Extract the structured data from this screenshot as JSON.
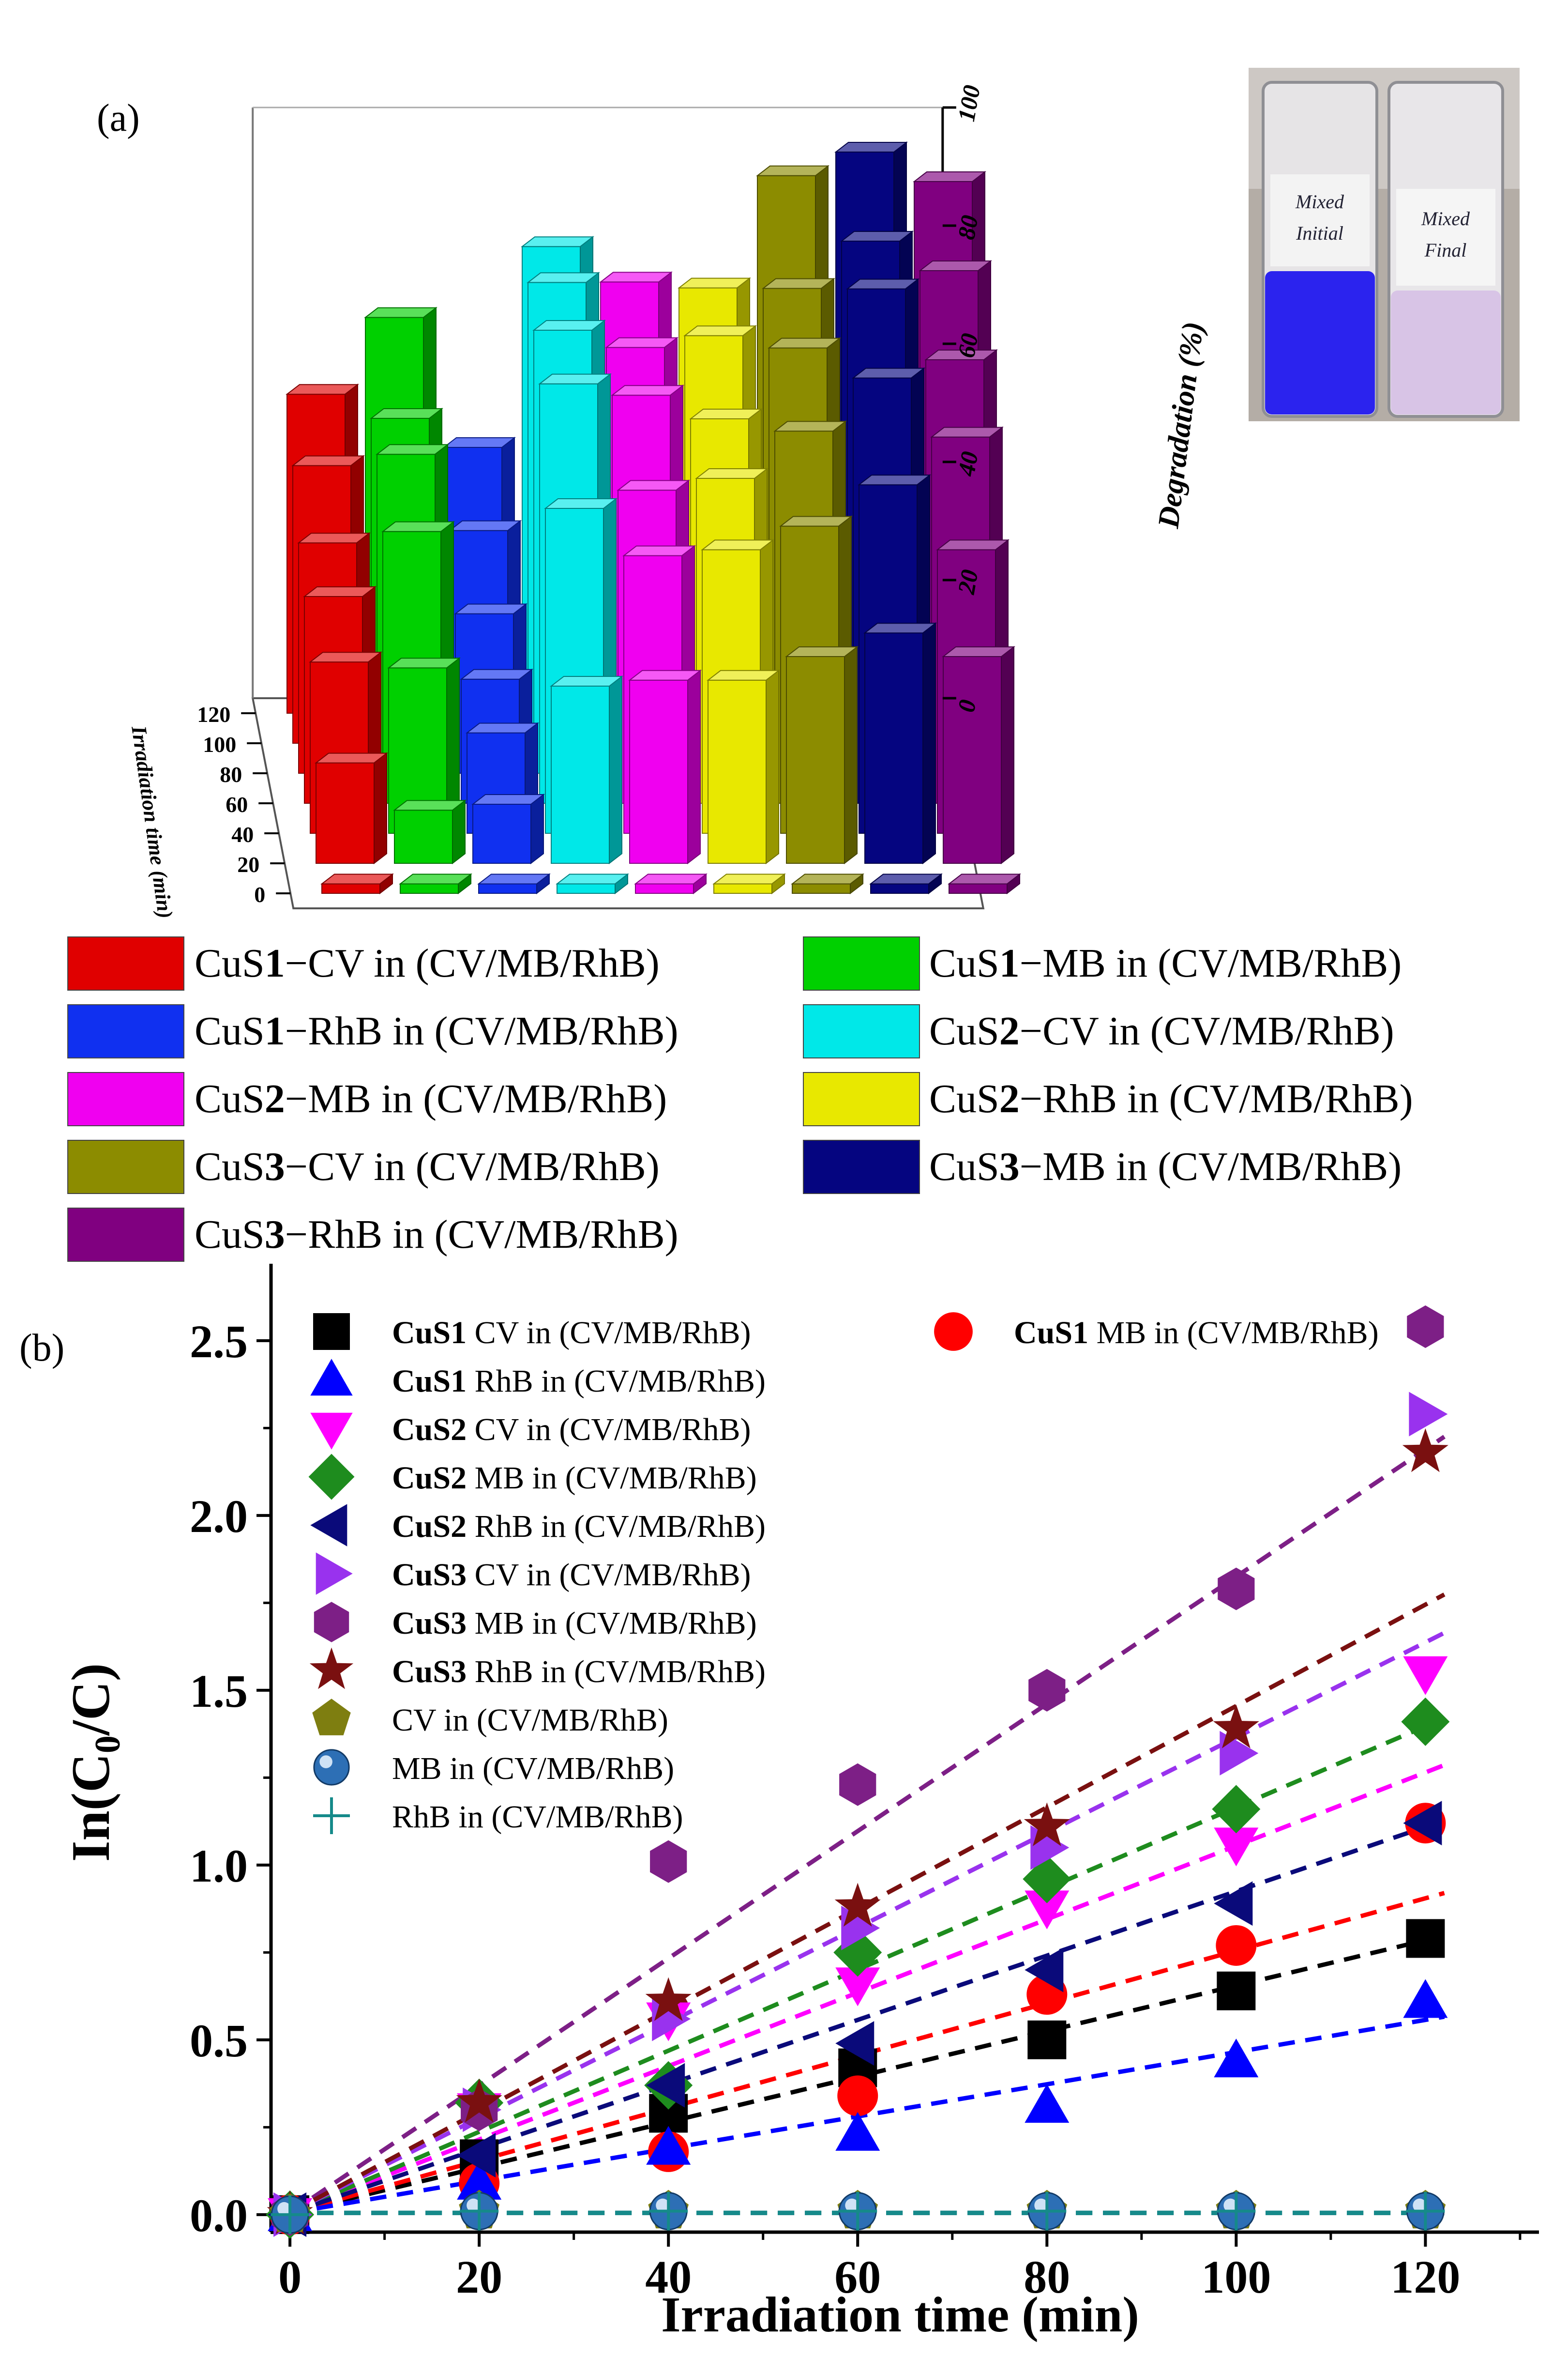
{
  "panel_a_label": "(a)",
  "panel_b_label": "(b)",
  "inset": {
    "left_vial_text_1": "Mixed",
    "left_vial_text_2": "Initial",
    "right_vial_text_1": "Mixed",
    "right_vial_text_2": "Final"
  },
  "chart_data": [
    {
      "type": "bar",
      "subtype": "3d-bar",
      "title": "",
      "ylabel": "Degradation (%)",
      "xlabel": "Irradiation time (min)",
      "zlim": [
        0,
        100
      ],
      "z_ticks": [
        0,
        20,
        40,
        60,
        80,
        100
      ],
      "time_ticks": [
        0,
        20,
        40,
        60,
        80,
        100,
        120
      ],
      "categories": [
        0,
        20,
        40,
        60,
        80,
        100,
        120
      ],
      "series": [
        {
          "name": "CuS1−CV in (CV/MB/RhB)",
          "color": "#e00000",
          "values": [
            0,
            17,
            29,
            35,
            39,
            47,
            54
          ]
        },
        {
          "name": "CuS1−MB in (CV/MB/RhB)",
          "color": "#00d000",
          "values": [
            0,
            9,
            28,
            46,
            54,
            55,
            67
          ]
        },
        {
          "name": "CuS1−RhB in (CV/MB/RhB)",
          "color": "#1030f0",
          "values": [
            0,
            10,
            17,
            21,
            27,
            36,
            45
          ]
        },
        {
          "name": "CuS2−CV in (CV/MB/RhB)",
          "color": "#00e8e8",
          "values": [
            0,
            30,
            55,
            71,
            75,
            78,
            79
          ]
        },
        {
          "name": "CuS2−MB in (CV/MB/RhB)",
          "color": "#f000f0",
          "values": [
            0,
            31,
            47,
            53,
            64,
            67,
            73
          ]
        },
        {
          "name": "CuS2−RhB in (CV/MB/RhB)",
          "color": "#e8e800",
          "values": [
            0,
            31,
            48,
            55,
            60,
            69,
            72
          ]
        },
        {
          "name": "CuS3−CV in (CV/MB/RhB)",
          "color": "#8c8c00",
          "values": [
            0,
            35,
            52,
            63,
            72,
            77,
            91
          ]
        },
        {
          "name": "CuS3−MB in (CV/MB/RhB)",
          "color": "#050580",
          "values": [
            0,
            39,
            59,
            72,
            82,
            85,
            95
          ]
        },
        {
          "name": "CuS3−RhB in (CV/MB/RhB)",
          "color": "#800080",
          "values": [
            0,
            35,
            48,
            62,
            70,
            80,
            90
          ]
        }
      ]
    },
    {
      "type": "scatter",
      "title": "",
      "xlabel": "Irradiation time (min)",
      "ylabel": "ln(C₀/C)",
      "ylabel_main": "In(C",
      "ylabel_sub": "0",
      "ylabel_end": "/C)",
      "xlim": [
        -2,
        132
      ],
      "ylim": [
        -0.05,
        2.72
      ],
      "x_ticks": [
        0,
        20,
        40,
        60,
        80,
        100,
        120
      ],
      "y_ticks": [
        "0.0",
        "0.5",
        "1.0",
        "1.5",
        "2.0",
        "2.5"
      ],
      "x": [
        0,
        20,
        40,
        60,
        80,
        100,
        120
      ],
      "series": [
        {
          "name": "CuS1 CV in (CV/MB/RhB)",
          "bold": "CuS1",
          "rest": " CV in (CV/MB/RhB)",
          "marker": "square",
          "color": "#000000",
          "values": [
            0,
            0.16,
            0.29,
            0.42,
            0.5,
            0.64,
            0.79
          ],
          "fit_slope": 0.0065
        },
        {
          "name": "CuS1 MB in (CV/MB/RhB)",
          "bold": "CuS1",
          "rest": " MB in (CV/MB/RhB)",
          "marker": "circle",
          "color": "#ff0000",
          "values": [
            0,
            0.09,
            0.18,
            0.34,
            0.63,
            0.77,
            1.12
          ],
          "fit_slope": 0.0075
        },
        {
          "name": "CuS1 RhB in (CV/MB/RhB)",
          "bold": "CuS1",
          "rest": " RhB in (CV/MB/RhB)",
          "marker": "triangle-up",
          "color": "#0000ff",
          "values": [
            0,
            0.09,
            0.19,
            0.23,
            0.31,
            0.44,
            0.61
          ],
          "fit_slope": 0.0046
        },
        {
          "name": "CuS2 CV in (CV/MB/RhB)",
          "bold": "CuS2",
          "rest": " CV in (CV/MB/RhB)",
          "marker": "triangle-down",
          "color": "#ff00ff",
          "values": [
            0,
            0.3,
            0.56,
            0.66,
            0.88,
            1.06,
            1.55
          ],
          "fit_slope": 0.0105
        },
        {
          "name": "CuS2 MB in (CV/MB/RhB)",
          "bold": "CuS2",
          "rest": " MB in (CV/MB/RhB)",
          "marker": "diamond",
          "color": "#1e8c1e",
          "values": [
            0,
            0.32,
            0.37,
            0.75,
            0.96,
            1.16,
            1.41
          ],
          "fit_slope": 0.0116
        },
        {
          "name": "CuS2 RhB in (CV/MB/RhB)",
          "bold": "CuS2",
          "rest": " RhB in (CV/MB/RhB)",
          "marker": "triangle-left",
          "color": "#0a0a7a",
          "values": [
            0,
            0.17,
            0.37,
            0.49,
            0.7,
            0.89,
            1.12
          ],
          "fit_slope": 0.0092
        },
        {
          "name": "CuS3 CV in (CV/MB/RhB)",
          "bold": "CuS3",
          "rest": " CV in (CV/MB/RhB)",
          "marker": "triangle-right",
          "color": "#9932ee",
          "values": [
            0,
            0.3,
            0.56,
            0.82,
            1.05,
            1.32,
            2.29
          ],
          "fit_slope": 0.0136
        },
        {
          "name": "CuS3 MB in (CV/MB/RhB)",
          "bold": "CuS3",
          "rest": " MB in (CV/MB/RhB)",
          "marker": "hexagon",
          "color": "#7d1f86",
          "values": [
            0,
            0.3,
            1.01,
            1.23,
            1.5,
            1.79,
            2.54
          ],
          "fit_slope": 0.0182
        },
        {
          "name": "CuS3 RhB in (CV/MB/RhB)",
          "bold": "CuS3",
          "rest": " RhB in (CV/MB/RhB)",
          "marker": "star",
          "color": "#7a1010",
          "values": [
            0,
            0.32,
            0.61,
            0.88,
            1.11,
            1.39,
            2.18
          ],
          "fit_slope": 0.0145
        },
        {
          "name": "CV in (CV/MB/RhB)",
          "bold": "",
          "rest": "CV in (CV/MB/RhB)",
          "marker": "pentagon",
          "color": "#7e7e10",
          "values": [
            0,
            0.01,
            0.01,
            0.01,
            0.01,
            0.01,
            0.01
          ],
          "fit_slope": 0.0
        },
        {
          "name": "MB in (CV/MB/RhB)",
          "bold": "",
          "rest": "MB in (CV/MB/RhB)",
          "marker": "sphere",
          "color": "#2d6fb5",
          "values": [
            0,
            0.01,
            0.01,
            0.01,
            0.01,
            0.01,
            0.01
          ],
          "fit_slope": 0.0
        },
        {
          "name": "RhB in (CV/MB/RhB)",
          "bold": "",
          "rest": "RhB in (CV/MB/RhB)",
          "marker": "plus",
          "color": "#158a8a",
          "values": [
            0,
            0.01,
            0.01,
            0.01,
            0.01,
            0.01,
            0.01
          ],
          "fit_slope": 0.0
        }
      ]
    }
  ]
}
